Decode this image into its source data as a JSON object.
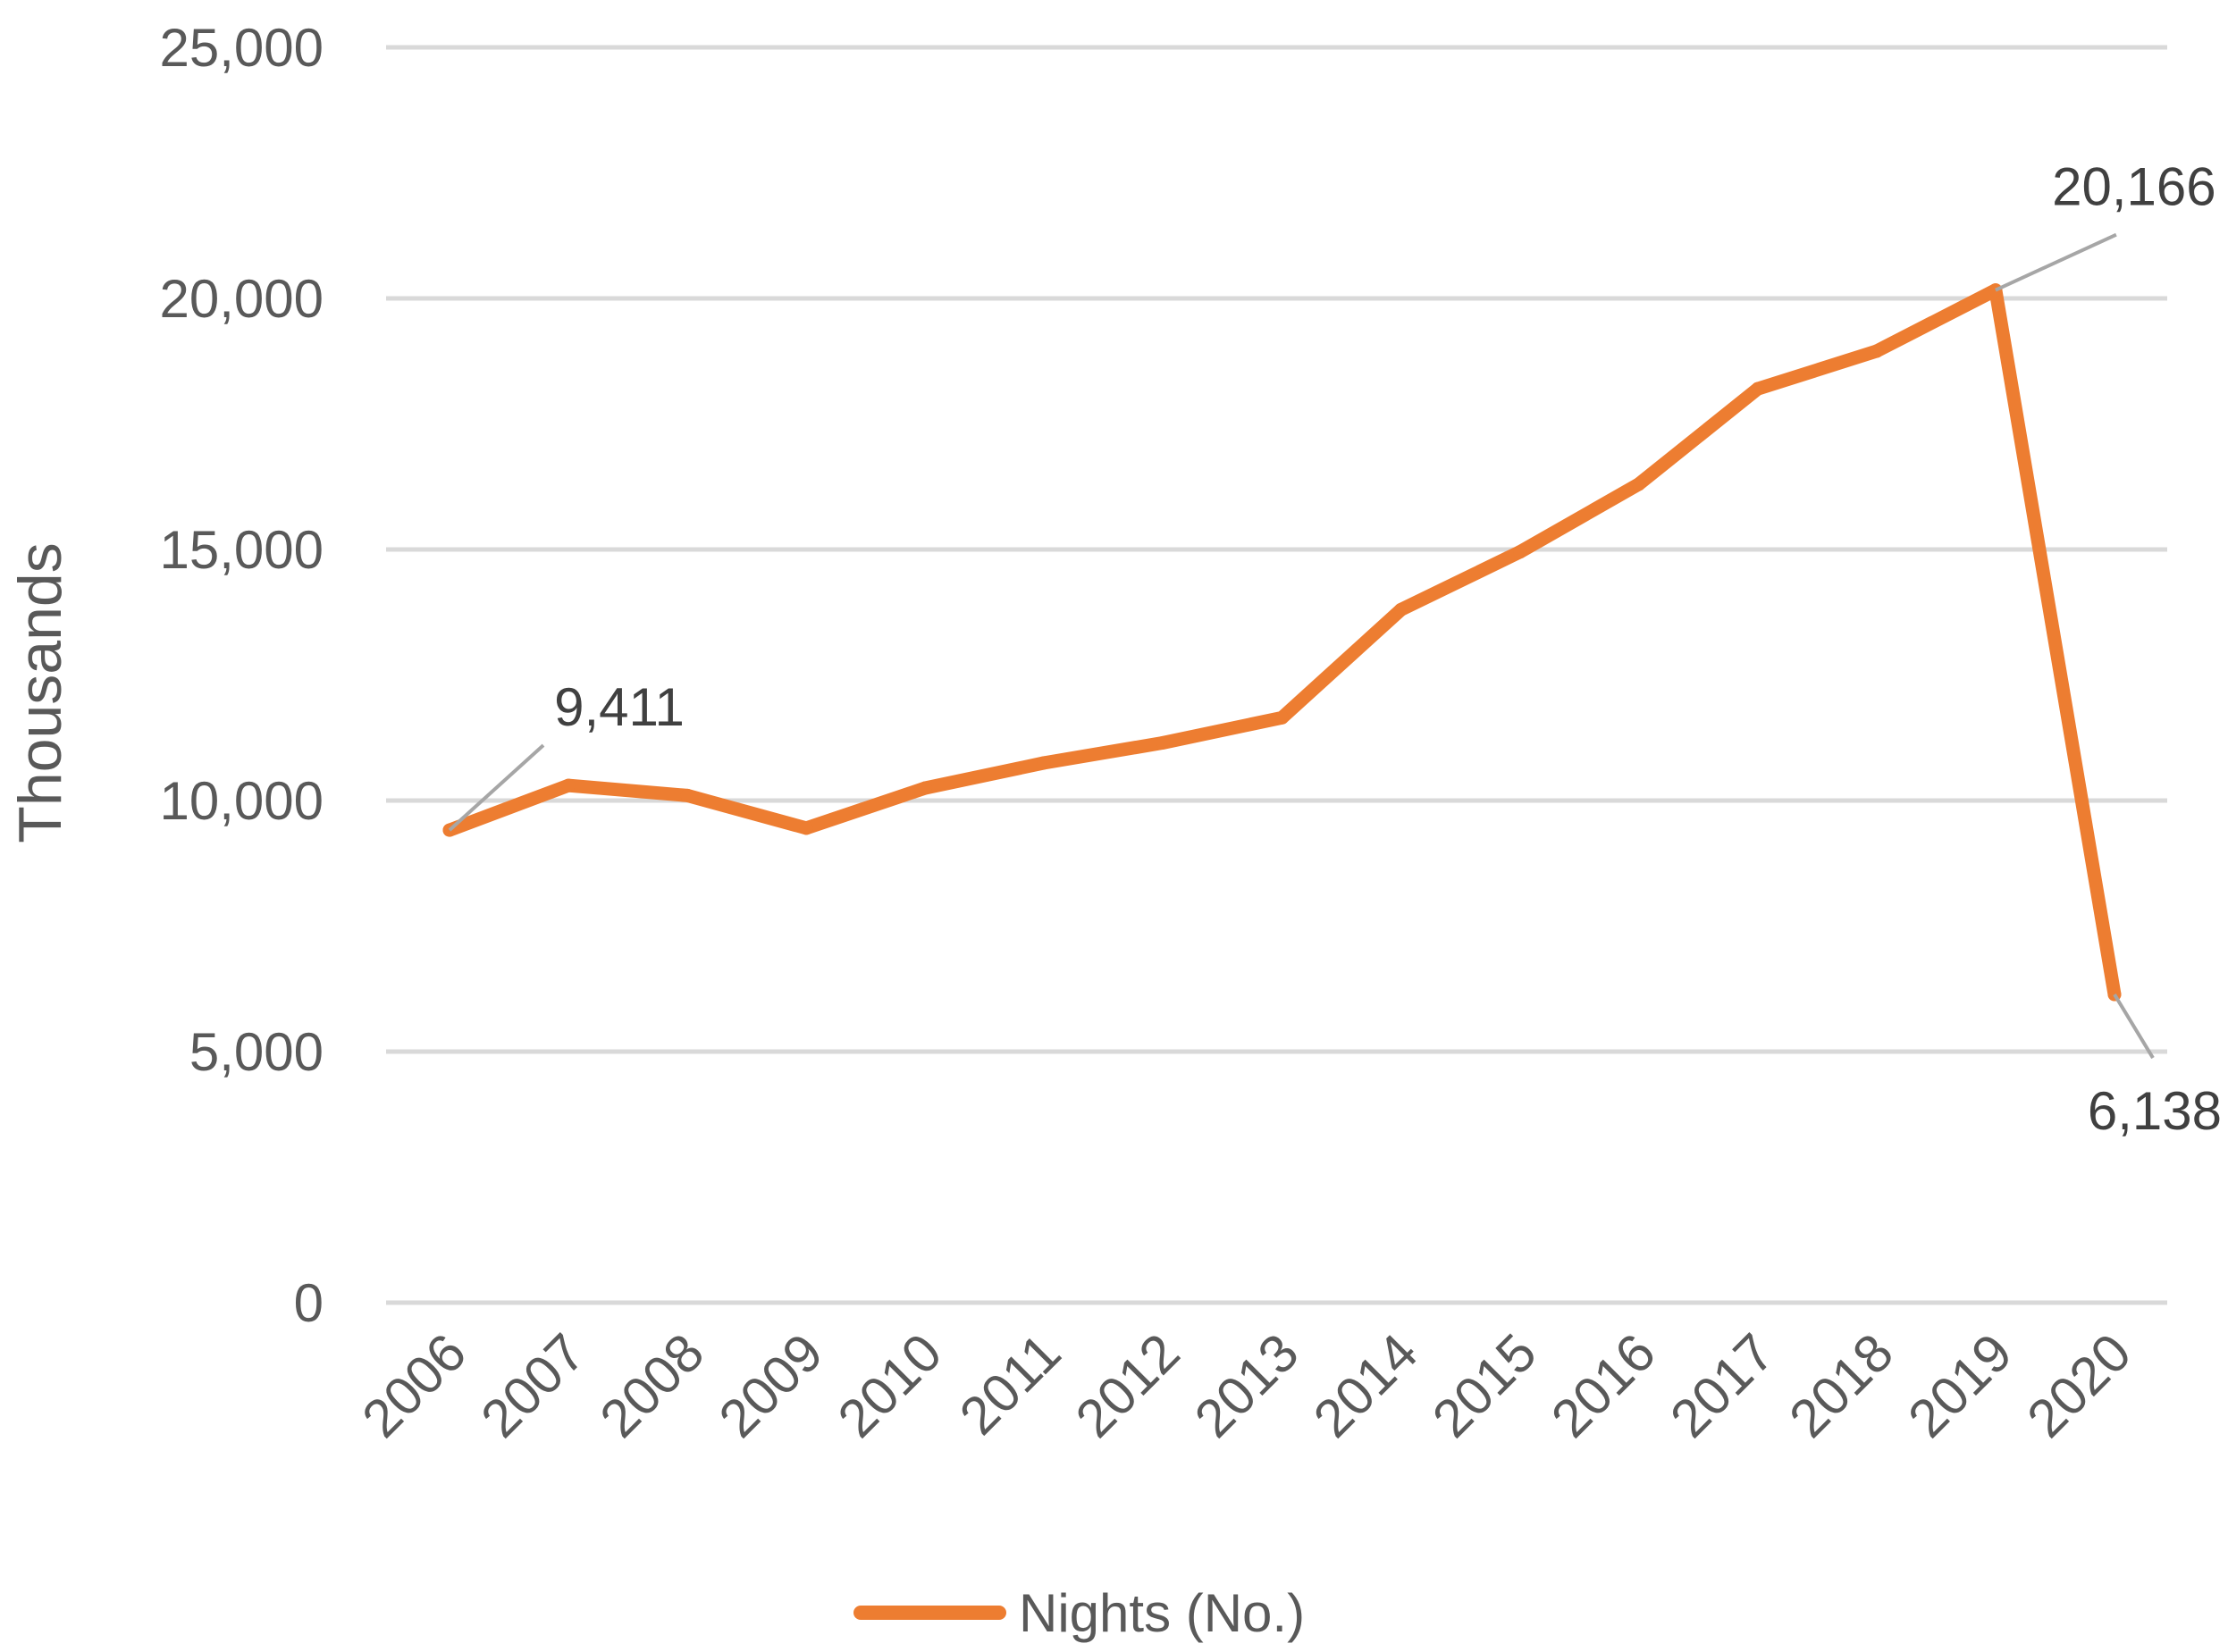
{
  "chart_data": {
    "type": "line",
    "categories": [
      "2006",
      "2007",
      "2008",
      "2009",
      "2010",
      "2011",
      "2012",
      "2013",
      "2014",
      "2015",
      "2016",
      "2017",
      "2018",
      "2019",
      "2020"
    ],
    "series": [
      {
        "name": "Nights (No.)",
        "color": "#ED7D31",
        "values": [
          9411,
          10300,
          10100,
          9450,
          10250,
          10750,
          11150,
          11650,
          13800,
          14950,
          16300,
          18200,
          18950,
          20166,
          6138
        ]
      }
    ],
    "data_labels": [
      {
        "index": 0,
        "text": "9,411"
      },
      {
        "index": 13,
        "text": "20,166"
      },
      {
        "index": 14,
        "text": "6,138"
      }
    ],
    "title": "",
    "xlabel": "",
    "ylabel": "Thousands",
    "ylim": [
      0,
      25000
    ],
    "yticks": [
      0,
      5000,
      10000,
      15000,
      20000,
      25000
    ],
    "ytick_labels": [
      "0",
      "5,000",
      "10,000",
      "15,000",
      "20,000",
      "25,000"
    ],
    "grid": true,
    "legend": "bottom",
    "gridline_color": "#D9D9D9",
    "leader_line_color": "#A6A6A6"
  }
}
